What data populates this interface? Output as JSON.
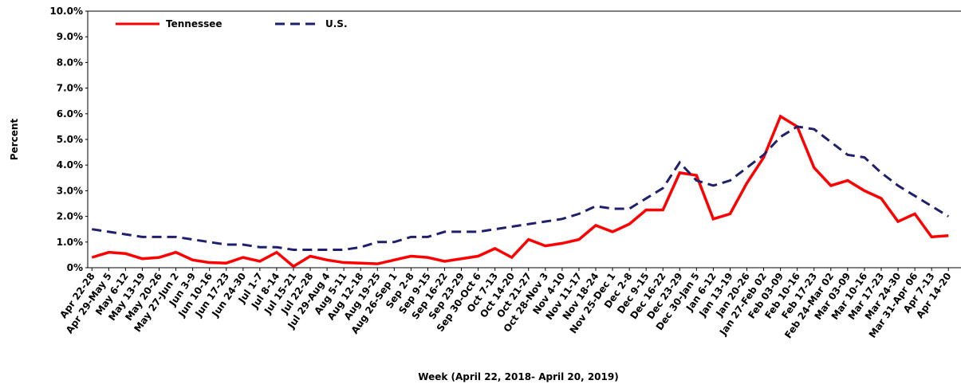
{
  "chart_data": {
    "type": "line",
    "x_label": "Week (April 22, 2018- April 20, 2019)",
    "y_label": "Percent",
    "categories": [
      "Apr 22-28",
      "Apr 29-May 5",
      "May 6-12",
      "May 13-19",
      "May 20-26",
      "May 27-Jun 2",
      "Jun 3-9",
      "Jun 10-16",
      "Jun 17-23",
      "Jun 24-30",
      "Jul 1-7",
      "Jul 8-14",
      "Jul 15-21",
      "Jul 22-28",
      "Jul 29-Aug 4",
      "Aug 5-11",
      "Aug 12-18",
      "Aug 19-25",
      "Aug 26-Sep 1",
      "Sep 2-8",
      "Sep 9-15",
      "Sep 16-22",
      "Sep 23-29",
      "Sep 30-Oct 6",
      "Oct 7-13",
      "Oct 14-20",
      "Oct 21-27",
      "Oct 28-Nov 3",
      "Nov 4-10",
      "Nov 11-17",
      "Nov 18-24",
      "Nov 25-Dec 1",
      "Dec 2-8",
      "Dec 9-15",
      "Dec 16-22",
      "Dec 23-29",
      "Dec 30-Jan 5",
      "Jan 6-12",
      "Jan 13-19",
      "Jan 20-26",
      "Jan 27-Feb 02",
      "Feb 03-09",
      "Feb 10-16",
      "Feb 17-23",
      "Feb 24-Mar 02",
      "Mar 03-09",
      "Mar 10-16",
      "Mar 17-23",
      "Mar 24-30",
      "Mar 31-Apr 06",
      "Apr 7-13",
      "Apr 14-20"
    ],
    "series": [
      {
        "name": "Tennessee",
        "color": "#ff0000",
        "dash": false,
        "values": [
          0.4,
          0.6,
          0.55,
          0.35,
          0.4,
          0.6,
          0.3,
          0.2,
          0.18,
          0.4,
          0.25,
          0.6,
          0.05,
          0.45,
          0.3,
          0.2,
          0.18,
          0.15,
          0.3,
          0.45,
          0.4,
          0.25,
          0.35,
          0.45,
          0.75,
          0.4,
          1.1,
          0.85,
          0.95,
          1.1,
          1.65,
          1.4,
          1.7,
          2.25,
          2.25,
          3.7,
          3.6,
          1.9,
          2.1,
          3.3,
          4.3,
          5.9,
          5.5,
          3.9,
          3.2,
          3.4,
          3.0,
          2.7,
          1.8,
          2.1,
          1.2,
          1.25
        ]
      },
      {
        "name": "U.S.",
        "color": "#1f1f6b",
        "dash": true,
        "values": [
          1.5,
          1.4,
          1.3,
          1.2,
          1.2,
          1.2,
          1.1,
          1.0,
          0.9,
          0.9,
          0.8,
          0.8,
          0.7,
          0.7,
          0.7,
          0.7,
          0.8,
          1.0,
          1.0,
          1.2,
          1.2,
          1.4,
          1.4,
          1.4,
          1.5,
          1.6,
          1.7,
          1.8,
          1.9,
          2.1,
          2.4,
          2.3,
          2.3,
          2.7,
          3.1,
          4.1,
          3.4,
          3.2,
          3.4,
          3.9,
          4.4,
          5.1,
          5.5,
          5.4,
          4.9,
          4.4,
          4.3,
          3.7,
          3.2,
          2.8,
          2.4,
          2.0
        ]
      }
    ],
    "ylim": [
      0,
      10
    ],
    "yticks": [
      {
        "value": 0,
        "label": "0%"
      },
      {
        "value": 1,
        "label": "1.0%"
      },
      {
        "value": 2,
        "label": "2.0%"
      },
      {
        "value": 3,
        "label": "3.0%"
      },
      {
        "value": 4,
        "label": "4.0%"
      },
      {
        "value": 5,
        "label": "5.0%"
      },
      {
        "value": 6,
        "label": "6.0%"
      },
      {
        "value": 7,
        "label": "7.0%"
      },
      {
        "value": 8,
        "label": "8.0%"
      },
      {
        "value": 9,
        "label": "9.0%"
      },
      {
        "value": 10,
        "label": "10.0%"
      }
    ],
    "legend": "top-left"
  }
}
